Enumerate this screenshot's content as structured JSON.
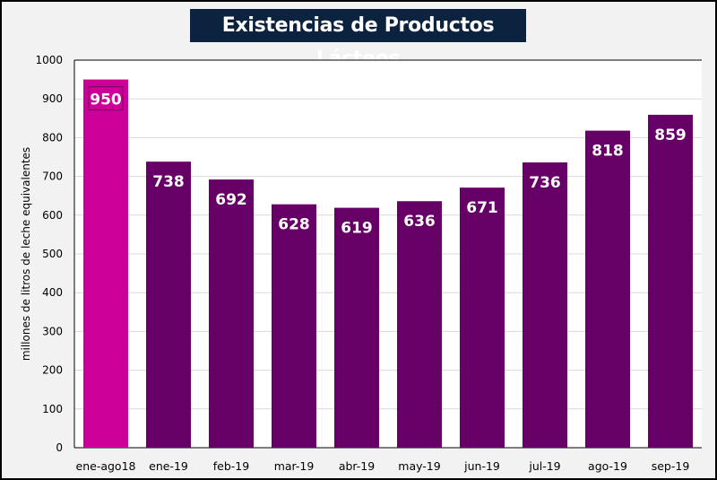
{
  "chart_data": {
    "type": "bar",
    "title": "Existencias de Productos Lácteos",
    "xlabel": "",
    "ylabel": "millones de litros de leche equivalentes",
    "ylim": [
      0,
      1000
    ],
    "yticks": [
      0,
      100,
      200,
      300,
      400,
      500,
      600,
      700,
      800,
      900,
      1000
    ],
    "grid": true,
    "categories": [
      "ene-ago18",
      "ene-19",
      "feb-19",
      "mar-19",
      "abr-19",
      "may-19",
      "jun-19",
      "jul-19",
      "ago-19",
      "sep-19"
    ],
    "values": [
      950,
      738,
      692,
      628,
      619,
      636,
      671,
      736,
      818,
      859
    ],
    "colors": {
      "highlight": "#cc0099",
      "default": "#660066",
      "title_bg": "#0c2340"
    }
  }
}
